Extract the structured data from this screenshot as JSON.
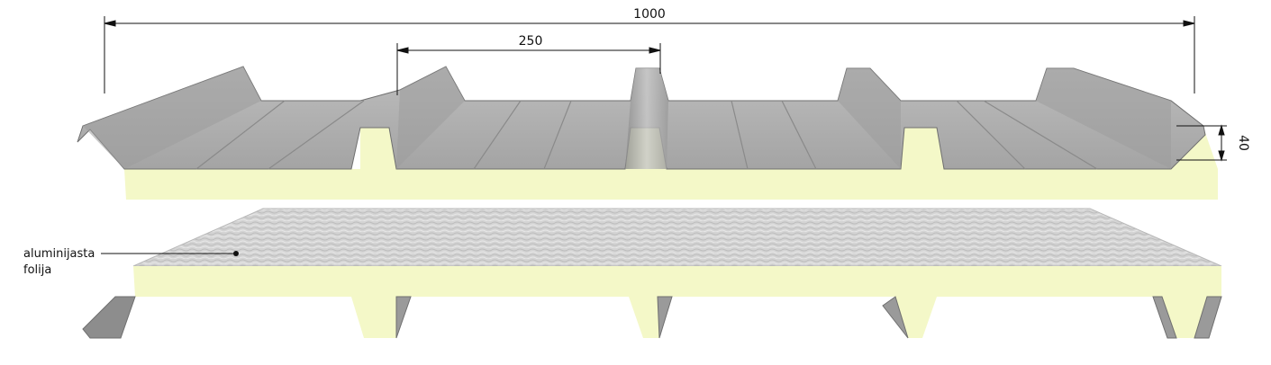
{
  "dimensions": {
    "overall_width": "1000",
    "rib_spacing": "250",
    "rib_height": "40"
  },
  "labels": {
    "foil_line1": "aluminijasta",
    "foil_line2": "folija"
  },
  "colors": {
    "metal": "#a9a9a9",
    "metal_dark": "#7b7b7b",
    "metal_light": "#c9c9c9",
    "foam": "#f4f8c8",
    "foil": "#d8d8d8",
    "dimension_line": "#111111"
  }
}
